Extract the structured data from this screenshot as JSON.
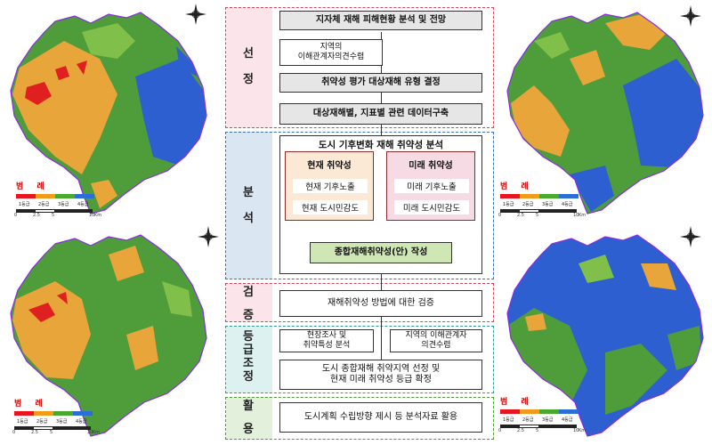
{
  "legend": {
    "title": "범  례",
    "levels": [
      "1등급",
      "2등급",
      "3등급",
      "4등급"
    ],
    "colors": [
      "#e8141e",
      "#f29a1a",
      "#4aa82e",
      "#2b6fd6"
    ],
    "scale_ticks": [
      "0",
      "2.5",
      "5",
      "",
      "10"
    ],
    "scale_unit": "Km"
  },
  "map_colors": {
    "green": "#4f9c3a",
    "light_green": "#7fbf4a",
    "orange": "#e8a53a",
    "blue": "#2d5fd0",
    "red": "#e02020",
    "border": "#8a2be2"
  },
  "flow": {
    "sections": {
      "selection": "선\n\n정",
      "analysis": "분\n\n석",
      "verification": "검\n\n증",
      "grading": "등\n급\n조\n정",
      "utilization": "활\n\n용"
    },
    "step1": "지자체 재해 피해현황 분석 및 전망",
    "step2": "지역의\n이해관계자의견수렴",
    "step3": "취약성 평가 대상재해 유형 결정",
    "step4": "대상재해별, 지표별 관련 데이터구축",
    "analysis_title": "도시 기후변화 재해 취약성 분석",
    "current_title": "현재 취약성",
    "current_items": [
      "현재 기후노출",
      "현재 도시민감도"
    ],
    "future_title": "미래 취약성",
    "future_items": [
      "미래 기후노출",
      "미래 도시민감도"
    ],
    "composite": "종합재해취약성(안) 작성",
    "verify_box": "재해취약성 방법에 대한 검증",
    "grade_left": "현장조사 및\n취약특성 분석",
    "grade_right": "지역의 이해관계자\n의견수렴",
    "grade_final": "도시 종합재해 취약지역 선정 및\n현재 미래 취약성 등급 확정",
    "util_box": "도시계획 수립방향 제시 등 분석자료 활용"
  }
}
